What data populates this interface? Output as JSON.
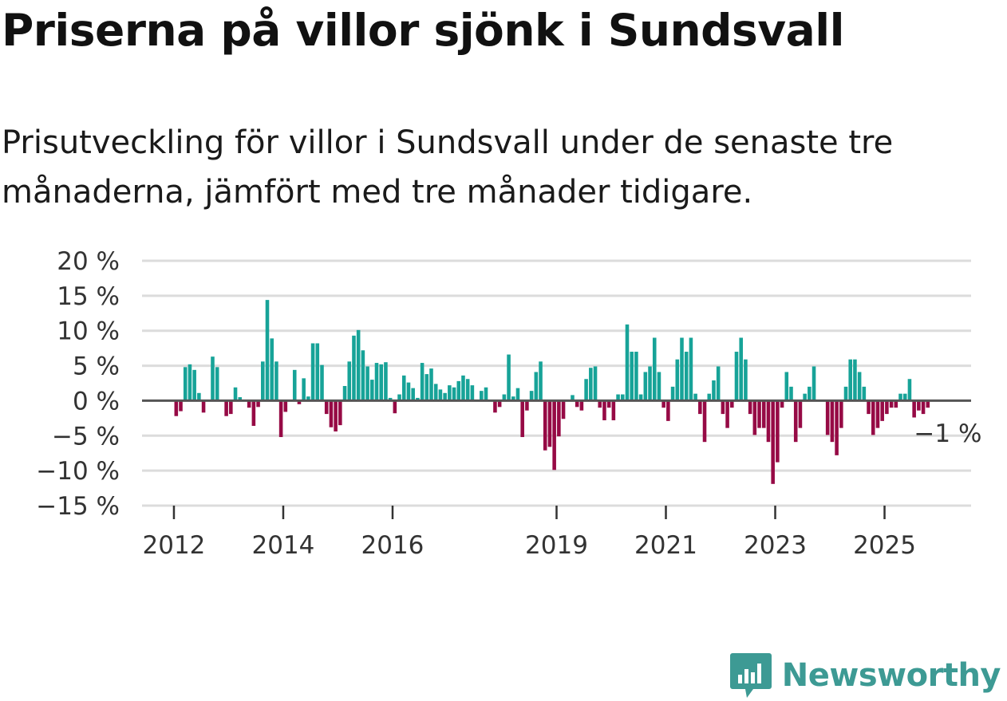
{
  "header": {
    "title": "Priserna på villor sjönk i Sundsvall",
    "subtitle": "Prisutveckling för villor i Sundsvall under de senaste tre månaderna, jämfört med tre månader tidigare."
  },
  "brand": {
    "name": "Newsworthy",
    "color": "#3d9a94",
    "icon": "bar-chart-bubble-icon"
  },
  "chart_data": {
    "type": "bar",
    "title": "Priserna på villor sjönk i Sundsvall",
    "subtitle": "Prisutveckling för villor i Sundsvall under de senaste tre månaderna, jämfört med tre månader tidigare.",
    "xlabel": "",
    "ylabel": "",
    "unit": "%",
    "ylim": [
      -15,
      20
    ],
    "y_ticks": [
      20,
      15,
      10,
      5,
      0,
      -5,
      -10,
      -15
    ],
    "y_tick_labels": [
      "20 %",
      "15 %",
      "10 %",
      "5 %",
      "0 %",
      "−5 %",
      "−10 %",
      "−15 %"
    ],
    "x_ticks": [
      "2012",
      "2014",
      "2016",
      "2019",
      "2021",
      "2023",
      "2025"
    ],
    "x_range": [
      "2011-06",
      "2026-08"
    ],
    "grid": true,
    "positive_color": "#17a398",
    "negative_color": "#960a45",
    "last_value_label": "−1 %",
    "series": [
      {
        "name": "Prisutveckling",
        "points": [
          {
            "x": "2012-01",
            "y": -2.2
          },
          {
            "x": "2012-02",
            "y": -1.5
          },
          {
            "x": "2012-03",
            "y": 4.8
          },
          {
            "x": "2012-04",
            "y": 5.2
          },
          {
            "x": "2012-05",
            "y": 4.4
          },
          {
            "x": "2012-06",
            "y": 1.1
          },
          {
            "x": "2012-07",
            "y": -1.7
          },
          {
            "x": "2012-09",
            "y": 6.3
          },
          {
            "x": "2012-10",
            "y": 4.8
          },
          {
            "x": "2012-12",
            "y": -2.2
          },
          {
            "x": "2013-01",
            "y": -1.9
          },
          {
            "x": "2013-02",
            "y": 1.9
          },
          {
            "x": "2013-03",
            "y": 0.5
          },
          {
            "x": "2013-05",
            "y": -1.0
          },
          {
            "x": "2013-06",
            "y": -3.6
          },
          {
            "x": "2013-07",
            "y": -0.9
          },
          {
            "x": "2013-08",
            "y": 5.6
          },
          {
            "x": "2013-09",
            "y": 14.4
          },
          {
            "x": "2013-10",
            "y": 8.9
          },
          {
            "x": "2013-11",
            "y": 5.6
          },
          {
            "x": "2013-12",
            "y": -5.2
          },
          {
            "x": "2014-01",
            "y": -1.6
          },
          {
            "x": "2014-03",
            "y": 4.4
          },
          {
            "x": "2014-04",
            "y": -0.5
          },
          {
            "x": "2014-05",
            "y": 3.2
          },
          {
            "x": "2014-06",
            "y": 0.6
          },
          {
            "x": "2014-07",
            "y": 8.2
          },
          {
            "x": "2014-08",
            "y": 8.2
          },
          {
            "x": "2014-09",
            "y": 5.1
          },
          {
            "x": "2014-10",
            "y": -1.9
          },
          {
            "x": "2014-11",
            "y": -3.8
          },
          {
            "x": "2014-12",
            "y": -4.4
          },
          {
            "x": "2015-01",
            "y": -3.5
          },
          {
            "x": "2015-02",
            "y": 2.1
          },
          {
            "x": "2015-03",
            "y": 5.6
          },
          {
            "x": "2015-04",
            "y": 9.3
          },
          {
            "x": "2015-05",
            "y": 10.1
          },
          {
            "x": "2015-06",
            "y": 7.2
          },
          {
            "x": "2015-07",
            "y": 4.9
          },
          {
            "x": "2015-08",
            "y": 3.0
          },
          {
            "x": "2015-09",
            "y": 5.4
          },
          {
            "x": "2015-10",
            "y": 5.2
          },
          {
            "x": "2015-11",
            "y": 5.5
          },
          {
            "x": "2015-12",
            "y": 0.4
          },
          {
            "x": "2016-01",
            "y": -1.8
          },
          {
            "x": "2016-02",
            "y": 0.9
          },
          {
            "x": "2016-03",
            "y": 3.6
          },
          {
            "x": "2016-04",
            "y": 2.6
          },
          {
            "x": "2016-05",
            "y": 1.8
          },
          {
            "x": "2016-06",
            "y": 0.4
          },
          {
            "x": "2016-07",
            "y": 5.4
          },
          {
            "x": "2016-08",
            "y": 3.8
          },
          {
            "x": "2016-09",
            "y": 4.6
          },
          {
            "x": "2016-10",
            "y": 2.4
          },
          {
            "x": "2016-11",
            "y": 1.6
          },
          {
            "x": "2016-12",
            "y": 1.1
          },
          {
            "x": "2017-01",
            "y": 2.2
          },
          {
            "x": "2017-02",
            "y": 1.9
          },
          {
            "x": "2017-03",
            "y": 2.8
          },
          {
            "x": "2017-04",
            "y": 3.6
          },
          {
            "x": "2017-05",
            "y": 3.1
          },
          {
            "x": "2017-06",
            "y": 2.2
          },
          {
            "x": "2017-08",
            "y": 1.4
          },
          {
            "x": "2017-09",
            "y": 1.9
          },
          {
            "x": "2017-11",
            "y": -1.7
          },
          {
            "x": "2017-12",
            "y": -0.9
          },
          {
            "x": "2018-01",
            "y": 0.9
          },
          {
            "x": "2018-02",
            "y": 6.6
          },
          {
            "x": "2018-03",
            "y": 0.6
          },
          {
            "x": "2018-04",
            "y": 1.8
          },
          {
            "x": "2018-05",
            "y": -5.2
          },
          {
            "x": "2018-06",
            "y": -1.4
          },
          {
            "x": "2018-07",
            "y": 1.4
          },
          {
            "x": "2018-08",
            "y": 4.1
          },
          {
            "x": "2018-09",
            "y": 5.6
          },
          {
            "x": "2018-10",
            "y": -7.1
          },
          {
            "x": "2018-11",
            "y": -6.6
          },
          {
            "x": "2018-12",
            "y": -9.9
          },
          {
            "x": "2019-01",
            "y": -5.1
          },
          {
            "x": "2019-02",
            "y": -2.6
          },
          {
            "x": "2019-04",
            "y": 0.8
          },
          {
            "x": "2019-05",
            "y": -0.9
          },
          {
            "x": "2019-06",
            "y": -1.4
          },
          {
            "x": "2019-07",
            "y": 3.1
          },
          {
            "x": "2019-08",
            "y": 4.7
          },
          {
            "x": "2019-09",
            "y": 4.9
          },
          {
            "x": "2019-10",
            "y": -1.0
          },
          {
            "x": "2019-11",
            "y": -2.8
          },
          {
            "x": "2019-12",
            "y": -1.0
          },
          {
            "x": "2020-01",
            "y": -2.8
          },
          {
            "x": "2020-02",
            "y": 0.9
          },
          {
            "x": "2020-03",
            "y": 0.9
          },
          {
            "x": "2020-04",
            "y": 10.9
          },
          {
            "x": "2020-05",
            "y": 7.0
          },
          {
            "x": "2020-06",
            "y": 7.0
          },
          {
            "x": "2020-07",
            "y": 0.9
          },
          {
            "x": "2020-08",
            "y": 4.1
          },
          {
            "x": "2020-09",
            "y": 4.9
          },
          {
            "x": "2020-10",
            "y": 9.0
          },
          {
            "x": "2020-11",
            "y": 4.1
          },
          {
            "x": "2020-12",
            "y": -1.0
          },
          {
            "x": "2021-01",
            "y": -2.9
          },
          {
            "x": "2021-02",
            "y": 2.0
          },
          {
            "x": "2021-03",
            "y": 5.9
          },
          {
            "x": "2021-04",
            "y": 9.0
          },
          {
            "x": "2021-05",
            "y": 7.0
          },
          {
            "x": "2021-06",
            "y": 9.0
          },
          {
            "x": "2021-07",
            "y": 1.0
          },
          {
            "x": "2021-08",
            "y": -1.9
          },
          {
            "x": "2021-09",
            "y": -5.9
          },
          {
            "x": "2021-10",
            "y": 1.0
          },
          {
            "x": "2021-11",
            "y": 2.9
          },
          {
            "x": "2021-12",
            "y": 4.9
          },
          {
            "x": "2022-01",
            "y": -1.9
          },
          {
            "x": "2022-02",
            "y": -3.9
          },
          {
            "x": "2022-03",
            "y": -1.0
          },
          {
            "x": "2022-04",
            "y": 7.0
          },
          {
            "x": "2022-05",
            "y": 9.0
          },
          {
            "x": "2022-06",
            "y": 5.9
          },
          {
            "x": "2022-07",
            "y": -1.9
          },
          {
            "x": "2022-08",
            "y": -4.9
          },
          {
            "x": "2022-09",
            "y": -3.9
          },
          {
            "x": "2022-10",
            "y": -3.9
          },
          {
            "x": "2022-11",
            "y": -5.9
          },
          {
            "x": "2022-12",
            "y": -11.9
          },
          {
            "x": "2023-01",
            "y": -8.8
          },
          {
            "x": "2023-02",
            "y": -1.0
          },
          {
            "x": "2023-03",
            "y": 4.1
          },
          {
            "x": "2023-04",
            "y": 2.0
          },
          {
            "x": "2023-05",
            "y": -5.9
          },
          {
            "x": "2023-06",
            "y": -3.9
          },
          {
            "x": "2023-07",
            "y": 1.0
          },
          {
            "x": "2023-08",
            "y": 2.0
          },
          {
            "x": "2023-09",
            "y": 4.9
          },
          {
            "x": "2023-12",
            "y": -4.9
          },
          {
            "x": "2024-01",
            "y": -5.9
          },
          {
            "x": "2024-02",
            "y": -7.8
          },
          {
            "x": "2024-03",
            "y": -3.9
          },
          {
            "x": "2024-04",
            "y": 2.0
          },
          {
            "x": "2024-05",
            "y": 5.9
          },
          {
            "x": "2024-06",
            "y": 5.9
          },
          {
            "x": "2024-07",
            "y": 4.1
          },
          {
            "x": "2024-08",
            "y": 2.0
          },
          {
            "x": "2024-09",
            "y": -1.9
          },
          {
            "x": "2024-10",
            "y": -4.9
          },
          {
            "x": "2024-11",
            "y": -3.9
          },
          {
            "x": "2024-12",
            "y": -2.9
          },
          {
            "x": "2025-01",
            "y": -1.9
          },
          {
            "x": "2025-02",
            "y": -1.0
          },
          {
            "x": "2025-03",
            "y": -1.0
          },
          {
            "x": "2025-04",
            "y": 1.0
          },
          {
            "x": "2025-05",
            "y": 1.0
          },
          {
            "x": "2025-06",
            "y": 3.1
          },
          {
            "x": "2025-07",
            "y": -2.4
          },
          {
            "x": "2025-08",
            "y": -1.4
          },
          {
            "x": "2025-09",
            "y": -1.9
          },
          {
            "x": "2025-10",
            "y": -1.0
          }
        ]
      }
    ]
  }
}
